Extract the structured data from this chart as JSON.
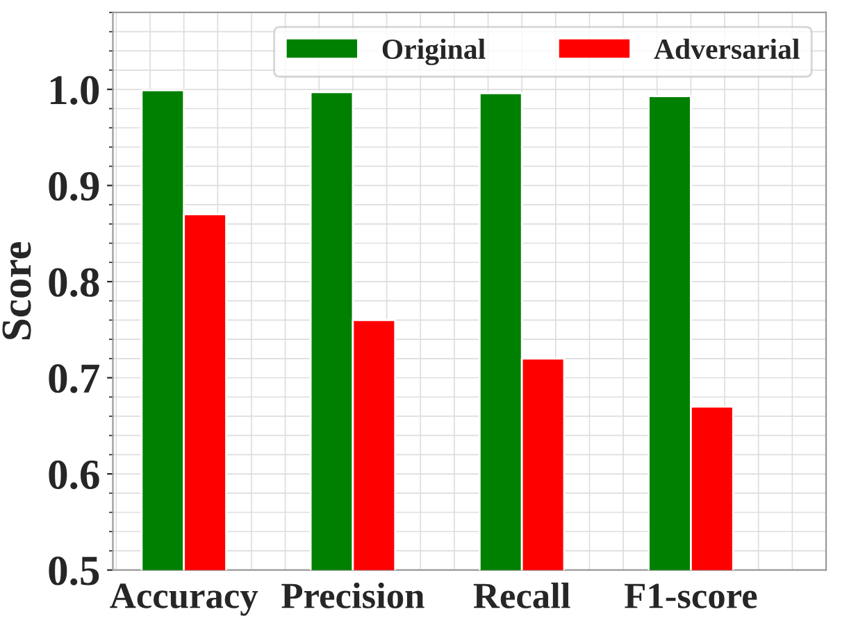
{
  "chart_data": {
    "type": "bar",
    "ylabel": "Score",
    "categories": [
      "Accuracy",
      "Precision",
      "Recall",
      "F1-score"
    ],
    "series": [
      {
        "name": "Original",
        "color": "#008000",
        "values": [
          0.999,
          0.997,
          0.996,
          0.993
        ]
      },
      {
        "name": "Adversarial",
        "color": "#ff0000",
        "values": [
          0.87,
          0.76,
          0.72,
          0.67
        ]
      }
    ],
    "ylim": [
      0.5,
      1.08
    ],
    "yticks": [
      0.5,
      0.6,
      0.7,
      0.8,
      0.9,
      {
        "value": 1.0,
        "label": "1.0"
      }
    ],
    "grid": true,
    "legend": "top right"
  }
}
